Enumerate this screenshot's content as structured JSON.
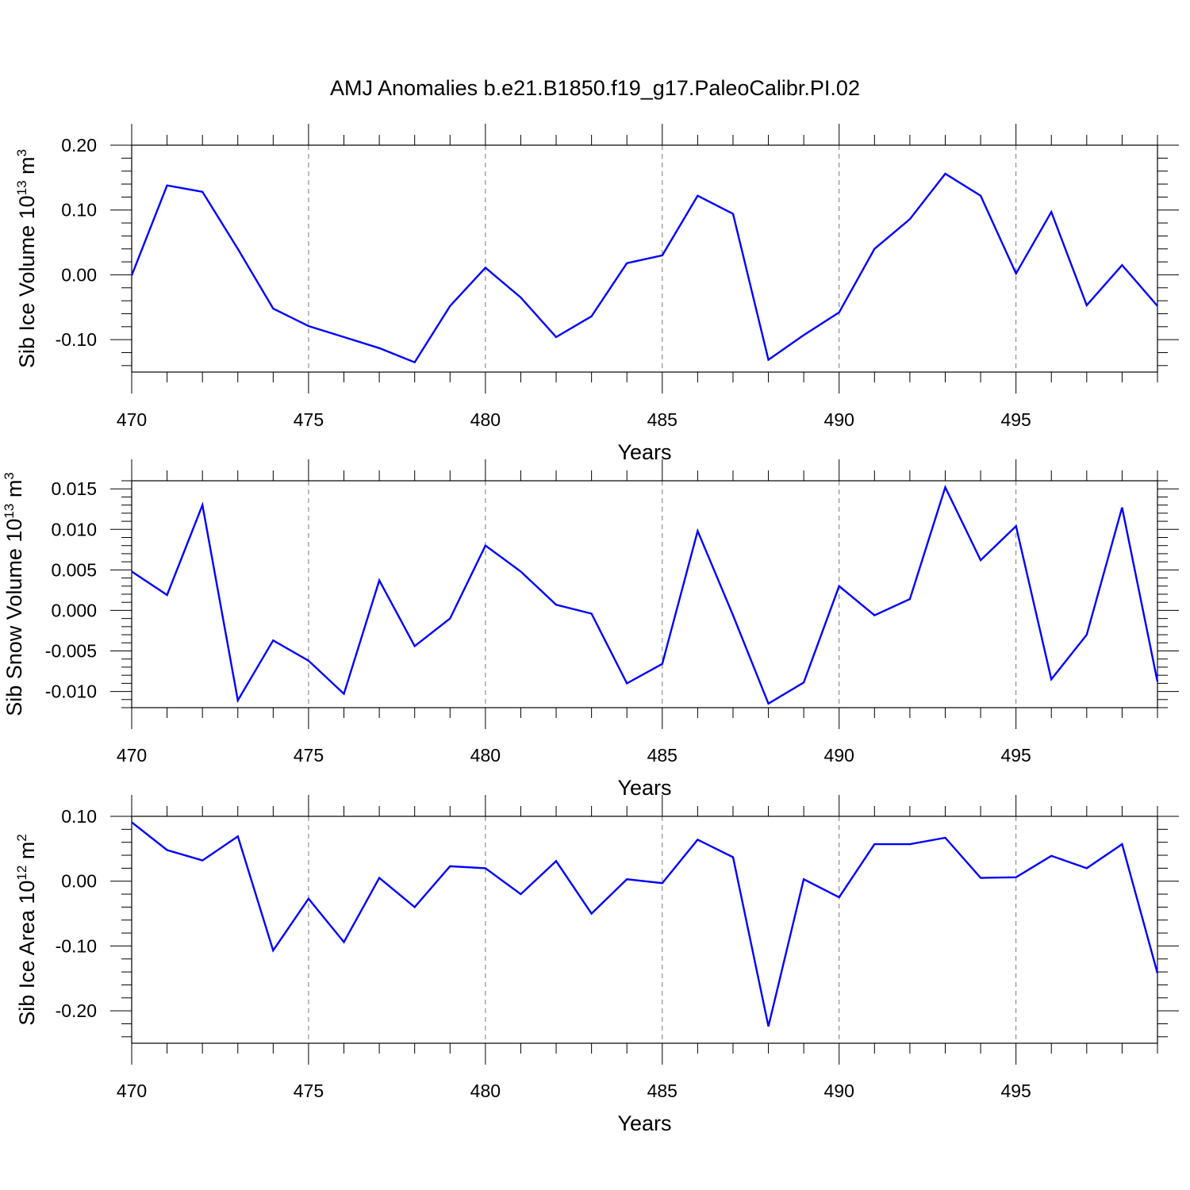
{
  "title": "AMJ Anomalies b.e21.B1850.f19_g17.PaleoCalibr.PI.02",
  "series_color": "#0000ff",
  "chart_data": [
    {
      "type": "line",
      "ylabel_main": "Sib Ice Volume 10",
      "ylabel_exp": "13",
      "ylabel_unit": " m",
      "ylabel_unit_exp": "3",
      "xlabel": "Years",
      "xlim": [
        470,
        499
      ],
      "ylim": [
        -0.15,
        0.2
      ],
      "xticks": [
        470,
        475,
        480,
        485,
        490,
        495
      ],
      "xtick_labels": [
        "470",
        "475",
        "480",
        "485",
        "490",
        "495"
      ],
      "yticks": [
        -0.1,
        0.0,
        0.1,
        0.2
      ],
      "ytick_labels": [
        "-0.10",
        "0.00",
        "0.10",
        "0.20"
      ],
      "yminor_step": 0.02,
      "grid": "dashed vertical",
      "x": [
        470,
        471,
        472,
        473,
        474,
        475,
        476,
        477,
        478,
        479,
        480,
        481,
        482,
        483,
        484,
        485,
        486,
        487,
        488,
        489,
        490,
        491,
        492,
        493,
        494,
        495,
        496,
        497,
        498,
        499
      ],
      "values": [
        -0.001,
        0.138,
        0.128,
        0.04,
        -0.052,
        -0.079,
        -0.096,
        -0.113,
        -0.135,
        -0.048,
        0.011,
        -0.035,
        -0.096,
        -0.064,
        0.018,
        0.03,
        0.122,
        0.094,
        -0.131,
        -0.093,
        -0.058,
        0.04,
        0.086,
        0.156,
        0.122,
        0.002,
        0.097,
        -0.047,
        0.015,
        -0.048
      ]
    },
    {
      "type": "line",
      "ylabel_main": "Sib Snow Volume 10",
      "ylabel_exp": "13",
      "ylabel_unit": " m",
      "ylabel_unit_exp": "3",
      "xlabel": "Years",
      "xlim": [
        470,
        499
      ],
      "ylim": [
        -0.012,
        0.016
      ],
      "xticks": [
        470,
        475,
        480,
        485,
        490,
        495
      ],
      "xtick_labels": [
        "470",
        "475",
        "480",
        "485",
        "490",
        "495"
      ],
      "yticks": [
        -0.01,
        -0.005,
        0.0,
        0.005,
        0.01,
        0.015
      ],
      "ytick_labels": [
        "-0.010",
        "-0.005",
        "0.000",
        "0.005",
        "0.010",
        "0.015"
      ],
      "yminor_step": 0.001,
      "grid": "dashed vertical",
      "x": [
        470,
        471,
        472,
        473,
        474,
        475,
        476,
        477,
        478,
        479,
        480,
        481,
        482,
        483,
        484,
        485,
        486,
        487,
        488,
        489,
        490,
        491,
        492,
        493,
        494,
        495,
        496,
        497,
        498,
        499
      ],
      "values": [
        0.0048,
        0.0019,
        0.013,
        -0.0111,
        -0.0037,
        -0.0062,
        -0.0103,
        0.0037,
        -0.0044,
        -0.001,
        0.008,
        0.0048,
        0.0007,
        -0.0004,
        -0.009,
        -0.0066,
        0.0098,
        -0.0006,
        -0.0115,
        -0.0089,
        0.003,
        -0.0006,
        0.0014,
        0.0152,
        0.0062,
        0.0104,
        -0.0085,
        -0.003,
        0.0127,
        -0.0088
      ]
    },
    {
      "type": "line",
      "ylabel_main": "Sib Ice Area 10",
      "ylabel_exp": "12",
      "ylabel_unit": " m",
      "ylabel_unit_exp": "2",
      "xlabel": "Years",
      "xlim": [
        470,
        499
      ],
      "ylim": [
        -0.25,
        0.1
      ],
      "xticks": [
        470,
        475,
        480,
        485,
        490,
        495
      ],
      "xtick_labels": [
        "470",
        "475",
        "480",
        "485",
        "490",
        "495"
      ],
      "yticks": [
        -0.2,
        -0.1,
        0.0,
        0.1
      ],
      "ytick_labels": [
        "-0.20",
        "-0.10",
        "0.00",
        "0.10"
      ],
      "yminor_step": 0.02,
      "grid": "dashed vertical",
      "x": [
        470,
        471,
        472,
        473,
        474,
        475,
        476,
        477,
        478,
        479,
        480,
        481,
        482,
        483,
        484,
        485,
        486,
        487,
        488,
        489,
        490,
        491,
        492,
        493,
        494,
        495,
        496,
        497,
        498,
        499
      ],
      "values": [
        0.091,
        0.048,
        0.032,
        0.069,
        -0.107,
        -0.027,
        -0.094,
        0.005,
        -0.04,
        0.023,
        0.02,
        -0.02,
        0.031,
        -0.05,
        0.003,
        -0.003,
        0.064,
        0.037,
        -0.224,
        0.003,
        -0.025,
        0.057,
        0.057,
        0.067,
        0.005,
        0.006,
        0.039,
        0.02,
        0.057,
        -0.142
      ]
    }
  ]
}
